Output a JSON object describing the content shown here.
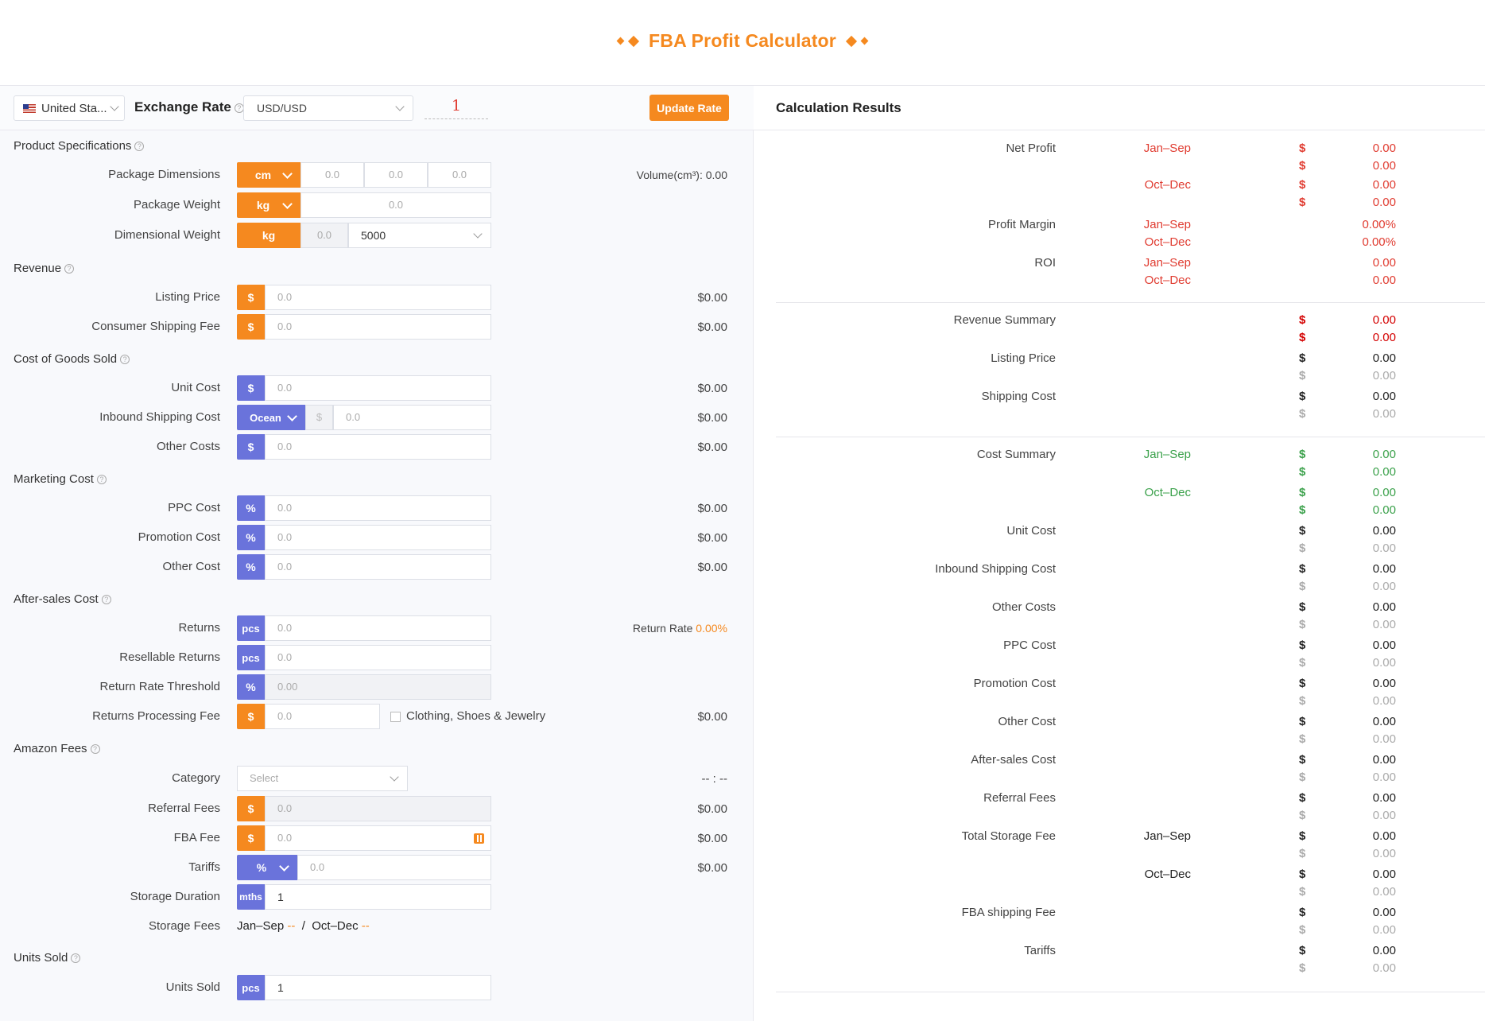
{
  "header": {
    "title": "FBA Profit Calculator"
  },
  "toolbar": {
    "country": "United Sta...",
    "exchange_label": "Exchange Rate",
    "rate_select": "USD/USD",
    "rate_value": "1",
    "update_button": "Update Rate"
  },
  "sections": {
    "product_specs": "Product Specifications",
    "revenue": "Revenue",
    "cogs": "Cost of Goods Sold",
    "marketing": "Marketing Cost",
    "after_sales": "After-sales Cost",
    "amazon_fees": "Amazon Fees",
    "units_sold": "Units Sold"
  },
  "product": {
    "dimensions_label": "Package Dimensions",
    "dimensions_unit": "cm",
    "dim_placeholder": "0.0",
    "volume_text": "Volume(cm³): 0.00",
    "weight_label": "Package Weight",
    "weight_unit": "kg",
    "weight_placeholder": "0.0",
    "dimweight_label": "Dimensional Weight",
    "dimweight_unit": "kg",
    "dimweight_value": "0.0",
    "divisor": "5000"
  },
  "revenue": {
    "listing_label": "Listing Price",
    "listing_unit": "$",
    "listing_placeholder": "0.0",
    "listing_value": "$0.00",
    "shipping_label": "Consumer Shipping Fee",
    "shipping_unit": "$",
    "shipping_placeholder": "0.0",
    "shipping_value": "$0.00"
  },
  "cogs": {
    "unit_label": "Unit Cost",
    "unit_unit": "$",
    "unit_placeholder": "0.0",
    "unit_value": "$0.00",
    "inbound_label": "Inbound Shipping Cost",
    "inbound_mode": "Ocean",
    "inbound_currency": "$",
    "inbound_placeholder": "0.0",
    "inbound_value": "$0.00",
    "other_label": "Other Costs",
    "other_unit": "$",
    "other_placeholder": "0.0",
    "other_value": "$0.00"
  },
  "marketing": {
    "ppc_label": "PPC Cost",
    "ppc_unit": "%",
    "ppc_placeholder": "0.0",
    "ppc_value": "$0.00",
    "promo_label": "Promotion Cost",
    "promo_unit": "%",
    "promo_placeholder": "0.0",
    "promo_value": "$0.00",
    "other_label": "Other Cost",
    "other_unit": "%",
    "other_placeholder": "0.0",
    "other_value": "$0.00"
  },
  "after_sales": {
    "returns_label": "Returns",
    "returns_unit": "pcs",
    "returns_placeholder": "0.0",
    "return_rate_label": "Return Rate",
    "return_rate_value": "0.00%",
    "resellable_label": "Resellable Returns",
    "resellable_unit": "pcs",
    "resellable_placeholder": "0.0",
    "threshold_label": "Return Rate Threshold",
    "threshold_unit": "%",
    "threshold_value": "0.00",
    "processing_label": "Returns Processing Fee",
    "processing_unit": "$",
    "processing_placeholder": "0.0",
    "clothing_label": "Clothing, Shoes & Jewelry",
    "processing_value": "$0.00"
  },
  "amazon_fees": {
    "category_label": "Category",
    "category_placeholder": "Select",
    "category_value": "-- : --",
    "referral_label": "Referral Fees",
    "referral_unit": "$",
    "referral_value_input": "0.0",
    "referral_value": "$0.00",
    "fba_label": "FBA Fee",
    "fba_unit": "$",
    "fba_placeholder": "0.0",
    "fba_value": "$0.00",
    "tariffs_label": "Tariffs",
    "tariffs_unit": "%",
    "tariffs_placeholder": "0.0",
    "tariffs_value": "$0.00",
    "storage_duration_label": "Storage Duration",
    "storage_duration_unit": "mths",
    "storage_duration_value": "1",
    "storage_fees_label": "Storage Fees",
    "storage_jan": "Jan–Sep",
    "storage_jan_val": "--",
    "storage_sep": "/",
    "storage_oct": "Oct–Dec",
    "storage_oct_val": "--"
  },
  "units": {
    "label": "Units Sold",
    "unit": "pcs",
    "value": "1"
  },
  "results": {
    "title": "Calculation Results",
    "period_jan": "Jan–Sep",
    "period_oct": "Oct–Dec",
    "dollar": "$",
    "zero": "0.00",
    "zero_pct": "0.00%",
    "net_profit": "Net Profit",
    "profit_margin": "Profit Margin",
    "roi": "ROI",
    "revenue_summary": "Revenue Summary",
    "listing_price": "Listing Price",
    "shipping_cost": "Shipping Cost",
    "cost_summary": "Cost Summary",
    "unit_cost": "Unit Cost",
    "inbound_shipping": "Inbound Shipping Cost",
    "other_costs": "Other Costs",
    "ppc_cost": "PPC Cost",
    "promotion_cost": "Promotion Cost",
    "other_cost": "Other Cost",
    "after_sales": "After-sales Cost",
    "referral_fees": "Referral Fees",
    "total_storage": "Total Storage Fee",
    "fba_shipping": "FBA shipping Fee",
    "tariffs": "Tariffs"
  },
  "colors": {
    "accent_orange": "#f5891f",
    "accent_blue": "#6a73db",
    "negative_red": "#e03c31",
    "cost_green": "#3ba14b"
  }
}
